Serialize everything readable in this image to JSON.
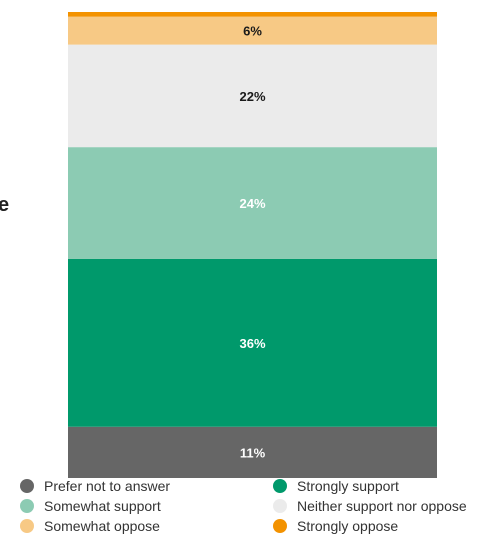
{
  "chart_data": {
    "type": "bar",
    "stacked": true,
    "categories": [
      ""
    ],
    "series": [
      {
        "name": "Prefer not to answer",
        "values": [
          11
        ],
        "label": "11%",
        "color": "#666666"
      },
      {
        "name": "Strongly support",
        "values": [
          36
        ],
        "label": "36%",
        "color": "#00996b"
      },
      {
        "name": "Somewhat support",
        "values": [
          24
        ],
        "label": "24%",
        "color": "#8ccbb3"
      },
      {
        "name": "Neither support nor oppose",
        "values": [
          22
        ],
        "label": "22%",
        "color": "#ebebeb"
      },
      {
        "name": "Somewhat oppose",
        "values": [
          6
        ],
        "label": "6%",
        "color": "#f7c985"
      },
      {
        "name": "Strongly oppose",
        "values": [
          1
        ],
        "label": "",
        "color": "#f39200"
      }
    ],
    "ylim": [
      0,
      100
    ],
    "grid": false,
    "legend_position": "bottom",
    "cut_text": "e"
  }
}
